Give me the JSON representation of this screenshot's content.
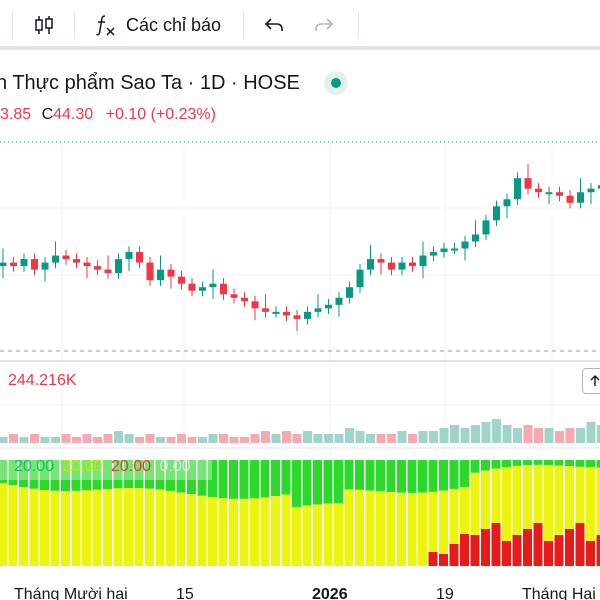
{
  "toolbar": {
    "indicators_label": "Các chỉ báo"
  },
  "legend": {
    "title": "n Thực phẩm Sao Ta · 1D · HOSE",
    "ohlc_prefix": "3.85",
    "close_key": "C",
    "close_value": "44.30",
    "change": "+0.10 (+0.23%)"
  },
  "volume": {
    "label": "244.216K"
  },
  "indicator": {
    "values": [
      "20.00",
      "20.00",
      "20.00",
      "0.00"
    ],
    "colors": [
      "#00c853",
      "#c6e600",
      "#e53935",
      "#e0e0e0"
    ]
  },
  "x_axis": {
    "labels": [
      "Tháng Mười hai",
      "15",
      "2026",
      "19",
      "Tháng Hai"
    ]
  },
  "colors": {
    "up": "#089981",
    "down": "#f23645",
    "vol_up": "#9fd4cb",
    "vol_down": "#f7a9b1",
    "ind_green": "#2bd92b",
    "ind_yellow": "#ecf50f",
    "ind_red": "#e81b1b"
  },
  "chart_data": [
    {
      "type": "candlestick",
      "title": "n Thực phẩm Sao Ta · 1D · HOSE",
      "close_series": [
        44.0,
        43.95,
        44.05,
        43.9,
        44.0,
        44.1,
        44.05,
        44.0,
        43.95,
        43.9,
        43.85,
        44.05,
        44.15,
        44.0,
        43.75,
        43.9,
        43.8,
        43.7,
        43.6,
        43.65,
        43.7,
        43.55,
        43.5,
        43.45,
        43.35,
        43.3,
        43.3,
        43.25,
        43.2,
        43.3,
        43.35,
        43.4,
        43.5,
        43.65,
        43.9,
        44.05,
        44.0,
        43.9,
        44.0,
        43.95,
        44.1,
        44.15,
        44.2,
        44.2,
        44.3,
        44.4,
        44.6,
        44.8,
        44.9,
        45.2,
        45.05,
        45.0,
        45.0,
        44.95,
        44.85,
        45.0,
        45.05,
        45.1
      ]
    },
    {
      "type": "bar",
      "series_note": "volume",
      "values": [
        2,
        3,
        2,
        3,
        2,
        2,
        3,
        2,
        3,
        2,
        3,
        4,
        3,
        2,
        3,
        2,
        2,
        3,
        2,
        2,
        3,
        3,
        2,
        2,
        3,
        4,
        3,
        4,
        3,
        4,
        3,
        3,
        3,
        5,
        4,
        3,
        3,
        3,
        4,
        3,
        4,
        4,
        5,
        6,
        5,
        6,
        7,
        8,
        6,
        5,
        6,
        5,
        5,
        4,
        5,
        5,
        7,
        6
      ]
    }
  ]
}
